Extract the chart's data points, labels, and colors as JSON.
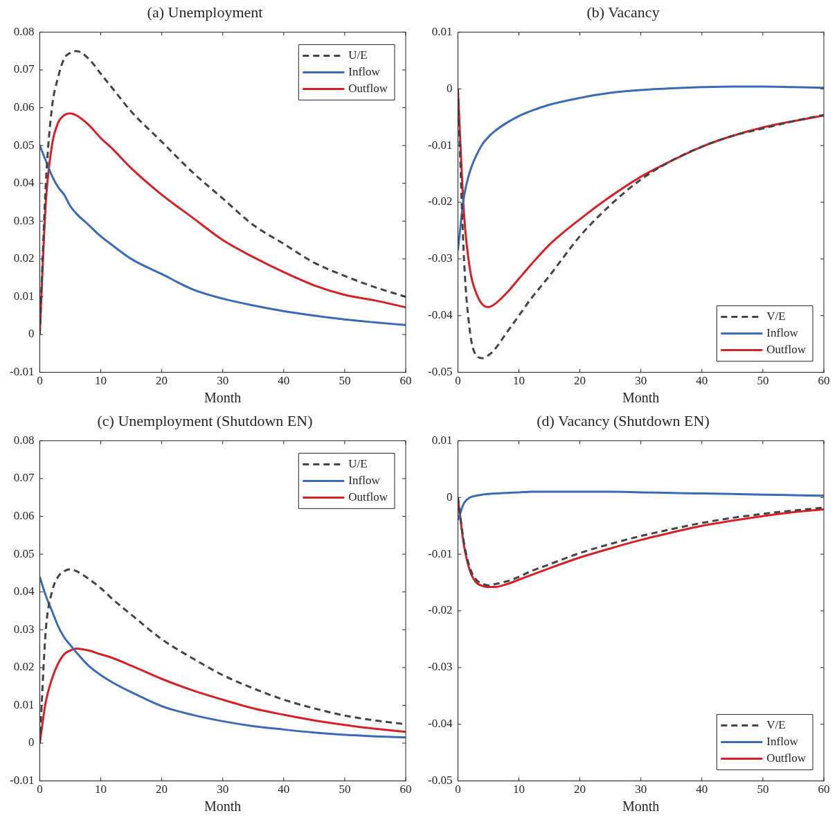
{
  "chart_data": [
    {
      "type": "line",
      "title": "(a) Unemployment",
      "xlabel": "Month",
      "x": [
        0,
        1,
        2,
        3,
        4,
        5,
        6,
        8,
        10,
        12,
        15,
        20,
        25,
        30,
        35,
        40,
        45,
        50,
        55,
        60
      ],
      "xlim": [
        0,
        60
      ],
      "xticks": [
        0,
        10,
        20,
        30,
        40,
        50,
        60
      ],
      "ylim": [
        -0.01,
        0.08
      ],
      "yticks": [
        -0.01,
        0,
        0.01,
        0.02,
        0.03,
        0.04,
        0.05,
        0.06,
        0.07,
        0.08
      ],
      "grid": false,
      "legend": "top right",
      "marker": "none",
      "series": [
        {
          "name": "U/E",
          "color": "#444444",
          "line_style": "dashed",
          "values": [
            0,
            0.04,
            0.06,
            0.068,
            0.073,
            0.0745,
            0.075,
            0.073,
            0.069,
            0.065,
            0.059,
            0.051,
            0.043,
            0.036,
            0.029,
            0.024,
            0.019,
            0.0155,
            0.0125,
            0.01
          ]
        },
        {
          "name": "Inflow",
          "color": "#3b6bb5",
          "line_style": "solid",
          "values": [
            0.05,
            0.046,
            0.042,
            0.039,
            0.037,
            0.034,
            0.032,
            0.029,
            0.026,
            0.0235,
            0.02,
            0.016,
            0.012,
            0.0095,
            0.0077,
            0.0062,
            0.005,
            0.004,
            0.0032,
            0.0025
          ]
        },
        {
          "name": "Outflow",
          "color": "#d62027",
          "line_style": "solid",
          "values": [
            0,
            0.035,
            0.05,
            0.056,
            0.058,
            0.0585,
            0.058,
            0.0555,
            0.052,
            0.049,
            0.044,
            0.037,
            0.031,
            0.025,
            0.0205,
            0.0165,
            0.013,
            0.0105,
            0.009,
            0.0072
          ]
        }
      ]
    },
    {
      "type": "line",
      "title": "(b) Vacancy",
      "xlabel": "Month",
      "x": [
        0,
        1,
        2,
        3,
        4,
        5,
        6,
        8,
        10,
        12,
        15,
        20,
        25,
        30,
        35,
        40,
        45,
        50,
        55,
        60
      ],
      "xlim": [
        0,
        60
      ],
      "xticks": [
        0,
        10,
        20,
        30,
        40,
        50,
        60
      ],
      "ylim": [
        -0.05,
        0.01
      ],
      "yticks": [
        -0.05,
        -0.04,
        -0.03,
        -0.02,
        -0.01,
        0,
        0.01
      ],
      "grid": false,
      "legend": "bottom right",
      "marker": "none",
      "series": [
        {
          "name": "V/E",
          "color": "#444444",
          "line_style": "dashed",
          "values": [
            0,
            -0.03,
            -0.043,
            -0.047,
            -0.0475,
            -0.047,
            -0.046,
            -0.043,
            -0.04,
            -0.037,
            -0.033,
            -0.026,
            -0.0205,
            -0.016,
            -0.0127,
            -0.0102,
            -0.0083,
            -0.007,
            -0.0057,
            -0.0046
          ]
        },
        {
          "name": "Inflow",
          "color": "#3b6bb5",
          "line_style": "solid",
          "values": [
            -0.0285,
            -0.019,
            -0.0145,
            -0.0118,
            -0.0098,
            -0.0085,
            -0.0075,
            -0.006,
            -0.0048,
            -0.0039,
            -0.0028,
            -0.0016,
            -0.0007,
            -0.0002,
            0.0001,
            0.0003,
            0.0004,
            0.0004,
            0.0003,
            0.0002
          ]
        },
        {
          "name": "Outflow",
          "color": "#d62027",
          "line_style": "solid",
          "values": [
            0,
            -0.022,
            -0.032,
            -0.036,
            -0.038,
            -0.0385,
            -0.038,
            -0.036,
            -0.0335,
            -0.031,
            -0.0275,
            -0.023,
            -0.019,
            -0.0155,
            -0.0127,
            -0.0102,
            -0.0083,
            -0.0068,
            -0.0057,
            -0.0047
          ]
        }
      ]
    },
    {
      "type": "line",
      "title": "(c) Unemployment (Shutdown EN)",
      "xlabel": "Month",
      "x": [
        0,
        1,
        2,
        3,
        4,
        5,
        6,
        8,
        10,
        12,
        15,
        20,
        25,
        30,
        35,
        40,
        45,
        50,
        55,
        60
      ],
      "xlim": [
        0,
        60
      ],
      "xticks": [
        0,
        10,
        20,
        30,
        40,
        50,
        60
      ],
      "ylim": [
        -0.01,
        0.08
      ],
      "yticks": [
        -0.01,
        0,
        0.01,
        0.02,
        0.03,
        0.04,
        0.05,
        0.06,
        0.07,
        0.08
      ],
      "grid": false,
      "legend": "top right",
      "marker": "none",
      "series": [
        {
          "name": "U/E",
          "color": "#444444",
          "line_style": "dashed",
          "values": [
            0,
            0.03,
            0.04,
            0.044,
            0.0455,
            0.046,
            0.0455,
            0.0435,
            0.041,
            0.038,
            0.034,
            0.0275,
            0.0225,
            0.018,
            0.0145,
            0.0115,
            0.0092,
            0.0073,
            0.006,
            0.005
          ]
        },
        {
          "name": "Inflow",
          "color": "#3b6bb5",
          "line_style": "solid",
          "values": [
            0.044,
            0.039,
            0.035,
            0.031,
            0.028,
            0.026,
            0.024,
            0.0205,
            0.018,
            0.016,
            0.0135,
            0.0098,
            0.0075,
            0.0058,
            0.0045,
            0.0036,
            0.0028,
            0.0022,
            0.0018,
            0.0015
          ]
        },
        {
          "name": "Outflow",
          "color": "#d62027",
          "line_style": "solid",
          "values": [
            0,
            0.011,
            0.017,
            0.021,
            0.0235,
            0.0245,
            0.025,
            0.0245,
            0.0235,
            0.0225,
            0.0205,
            0.017,
            0.014,
            0.0115,
            0.0092,
            0.0075,
            0.006,
            0.0048,
            0.0038,
            0.003
          ]
        }
      ]
    },
    {
      "type": "line",
      "title": "(d) Vacancy (Shutdown EN)",
      "xlabel": "Month",
      "x": [
        0,
        1,
        2,
        3,
        4,
        5,
        6,
        8,
        10,
        12,
        15,
        20,
        25,
        30,
        35,
        40,
        45,
        50,
        55,
        60
      ],
      "xlim": [
        0,
        60
      ],
      "xticks": [
        0,
        10,
        20,
        30,
        40,
        50,
        60
      ],
      "ylim": [
        -0.05,
        0.01
      ],
      "yticks": [
        -0.05,
        -0.04,
        -0.03,
        -0.02,
        -0.01,
        0,
        0.01
      ],
      "grid": false,
      "legend": "bottom right",
      "marker": "none",
      "series": [
        {
          "name": "V/E",
          "color": "#444444",
          "line_style": "dashed",
          "values": [
            0,
            -0.008,
            -0.0125,
            -0.0145,
            -0.0152,
            -0.0155,
            -0.0153,
            -0.0148,
            -0.014,
            -0.013,
            -0.0118,
            -0.0098,
            -0.0082,
            -0.0068,
            -0.0056,
            -0.0045,
            -0.0036,
            -0.0029,
            -0.0023,
            -0.0018
          ]
        },
        {
          "name": "Inflow",
          "color": "#3b6bb5",
          "line_style": "solid",
          "values": [
            -0.004,
            -0.001,
            0,
            0.0003,
            0.0005,
            0.0006,
            0.0007,
            0.0008,
            0.0009,
            0.001,
            0.001,
            0.001,
            0.001,
            0.0009,
            0.0008,
            0.0007,
            0.0006,
            0.0005,
            0.0004,
            0.0003
          ]
        },
        {
          "name": "Outflow",
          "color": "#d62027",
          "line_style": "solid",
          "values": [
            0,
            -0.0085,
            -0.013,
            -0.015,
            -0.0156,
            -0.0158,
            -0.0158,
            -0.0153,
            -0.0145,
            -0.0137,
            -0.0125,
            -0.0106,
            -0.009,
            -0.0075,
            -0.0062,
            -0.005,
            -0.0041,
            -0.0033,
            -0.0026,
            -0.0021
          ]
        }
      ]
    }
  ]
}
